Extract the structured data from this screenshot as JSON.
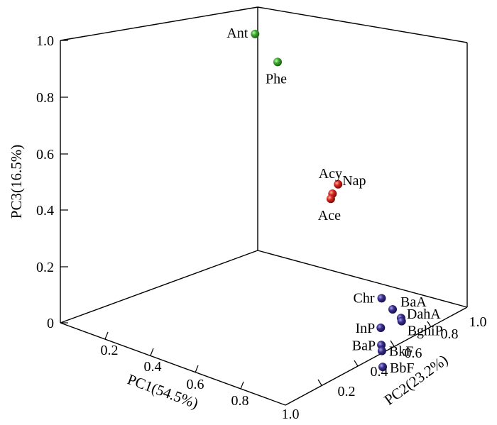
{
  "chart_data": {
    "type": "scatter",
    "projection": "3d",
    "title": "",
    "xlabel": "PC1(54.5%)",
    "ylabel": "PC2(23.2%)",
    "zlabel": "PC3(16.5%)",
    "xlim": [
      0,
      1
    ],
    "ylim": [
      0,
      1
    ],
    "zlim": [
      0,
      1
    ],
    "x_ticks": [
      "0.2",
      "0.4",
      "0.6",
      "0.8",
      "1.0"
    ],
    "y_ticks": [
      "0.2",
      "0.4",
      "0.6",
      "0.8",
      "1.0"
    ],
    "z_ticks": [
      "0",
      "0.2",
      "0.4",
      "0.6",
      "0.8",
      "1.0"
    ],
    "grid": false,
    "colors": {
      "green": "#3aa92e",
      "red": "#d7261e",
      "blue": "#3b2f8f"
    },
    "points": [
      {
        "label": "Ant",
        "x": 0.12,
        "y": 0.85,
        "z": 0.84,
        "color": "green"
      },
      {
        "label": "Phe",
        "x": 0.22,
        "y": 0.85,
        "z": 0.77,
        "color": "green"
      },
      {
        "label": "Acy",
        "x": 0.49,
        "y": 0.82,
        "z": 0.39,
        "color": "red"
      },
      {
        "label": "Nap",
        "x": 0.48,
        "y": 0.86,
        "z": 0.41,
        "color": "red"
      },
      {
        "label": "Ace",
        "x": 0.5,
        "y": 0.8,
        "z": 0.38,
        "color": "red"
      },
      {
        "label": "Chr",
        "x": 0.84,
        "y": 0.67,
        "z": 0.16,
        "color": "blue"
      },
      {
        "label": "BaA",
        "x": 0.88,
        "y": 0.68,
        "z": 0.13,
        "color": "blue"
      },
      {
        "label": "DahA",
        "x": 0.9,
        "y": 0.7,
        "z": 0.1,
        "color": "blue"
      },
      {
        "label": "BghiP",
        "x": 0.92,
        "y": 0.68,
        "z": 0.1,
        "color": "blue"
      },
      {
        "label": "InP",
        "x": 0.88,
        "y": 0.62,
        "z": 0.08,
        "color": "blue"
      },
      {
        "label": "BaP",
        "x": 0.9,
        "y": 0.6,
        "z": 0.03,
        "color": "blue"
      },
      {
        "label": "BkF",
        "x": 0.92,
        "y": 0.58,
        "z": 0.02,
        "color": "blue"
      },
      {
        "label": "BbF",
        "x": 0.95,
        "y": 0.55,
        "z": -0.02,
        "color": "blue"
      }
    ]
  }
}
